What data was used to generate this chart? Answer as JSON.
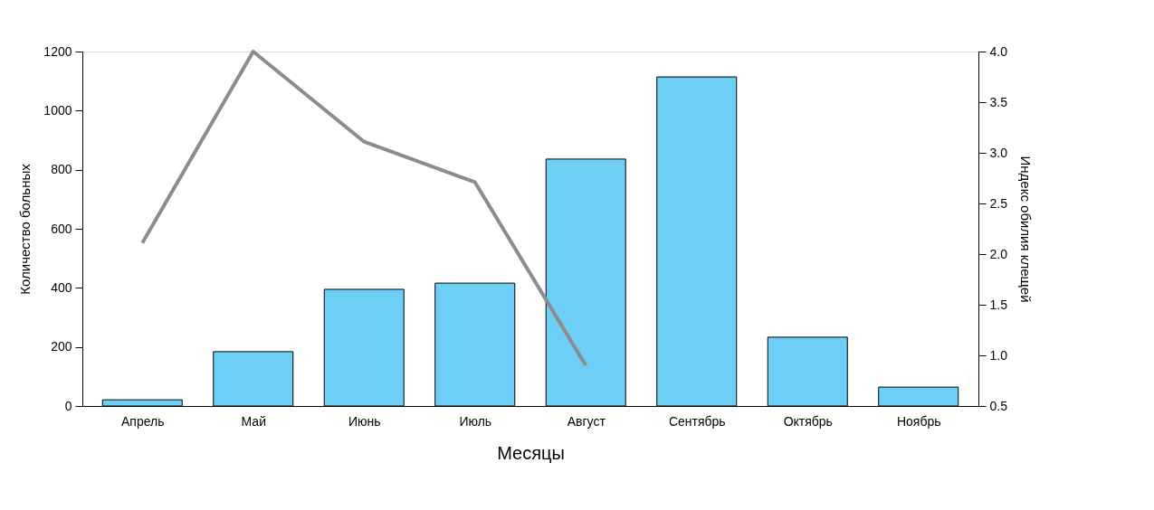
{
  "chart_data": {
    "type": "bar",
    "xlabel": "Месяцы",
    "ylabel": "Количество больных",
    "y2label": "Индекс обилия клещей",
    "categories": [
      "Апрель",
      "Май",
      "Июнь",
      "Июль",
      "Август",
      "Сентябрь",
      "Октябрь",
      "Ноябрь"
    ],
    "series": [
      {
        "color": "#6dcff6",
        "values": [
          21,
          184,
          395,
          416,
          836,
          1114,
          233,
          64
        ]
      },
      {
        "type": "line",
        "axis": "y2",
        "color": "#8c8c8c",
        "values": [
          2.11,
          4.0,
          3.11,
          2.71,
          0.9,
          null,
          null,
          null
        ]
      }
    ],
    "ylim": [
      0,
      1200
    ],
    "yticks": [
      0,
      200,
      400,
      600,
      800,
      1000,
      1200
    ],
    "y2lim": [
      0.5,
      4.0
    ],
    "y2ticks": [
      {
        "value": 0.5,
        "label": "0.5"
      },
      {
        "value": 1.0,
        "label": "1.0"
      },
      {
        "value": 1.5,
        "label": "1.5"
      },
      {
        "value": 2.0,
        "label": "2.0"
      },
      {
        "value": 2.5,
        "label": "2.5"
      },
      {
        "value": 3.0,
        "label": "3.0"
      },
      {
        "value": 3.5,
        "label": "3.5"
      },
      {
        "value": 4.0,
        "label": "4.0"
      }
    ],
    "grid": false
  }
}
